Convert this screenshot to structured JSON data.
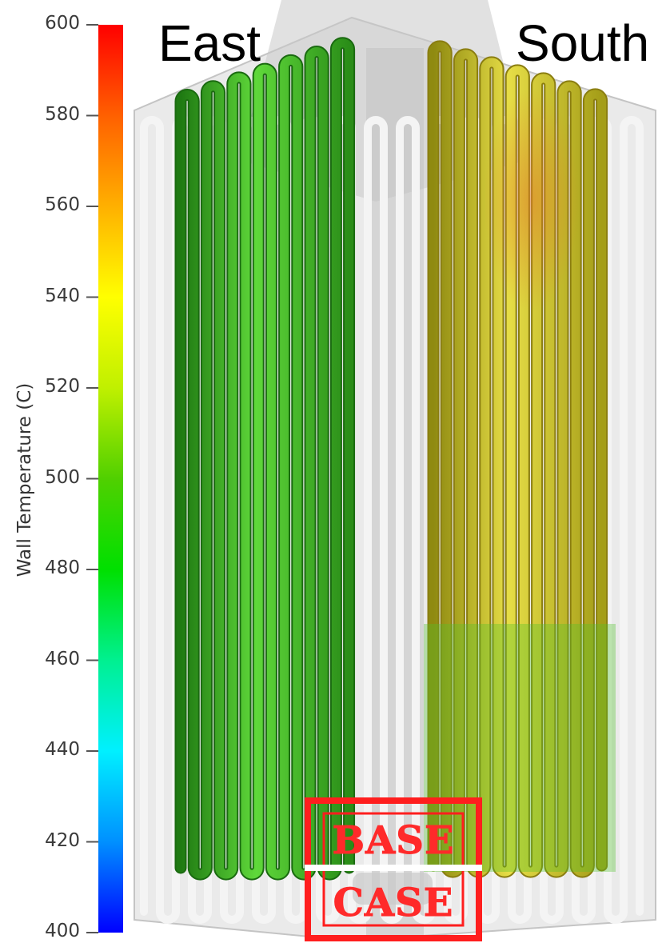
{
  "colorbar": {
    "title": "Wall Temperature (C)",
    "min": 400,
    "max": 600,
    "ticks": [
      "600",
      "580",
      "560",
      "540",
      "520",
      "500",
      "480",
      "460",
      "440",
      "420",
      "400"
    ],
    "colormap": [
      "#0000ff",
      "#0090ff",
      "#00f0ff",
      "#00f090",
      "#00e000",
      "#50d000",
      "#c0f000",
      "#ffff00",
      "#ffb000",
      "#ff6000",
      "#ff0000"
    ]
  },
  "faces": {
    "east_label": "East",
    "south_label": "South",
    "east_tube_color": "#3fb822",
    "south_tube_color": "#c9c22a",
    "south_hot_color": "#d98a2a"
  },
  "stamp": {
    "line1": "BASE",
    "line2": "CASE",
    "color": "#ff2a2a"
  }
}
